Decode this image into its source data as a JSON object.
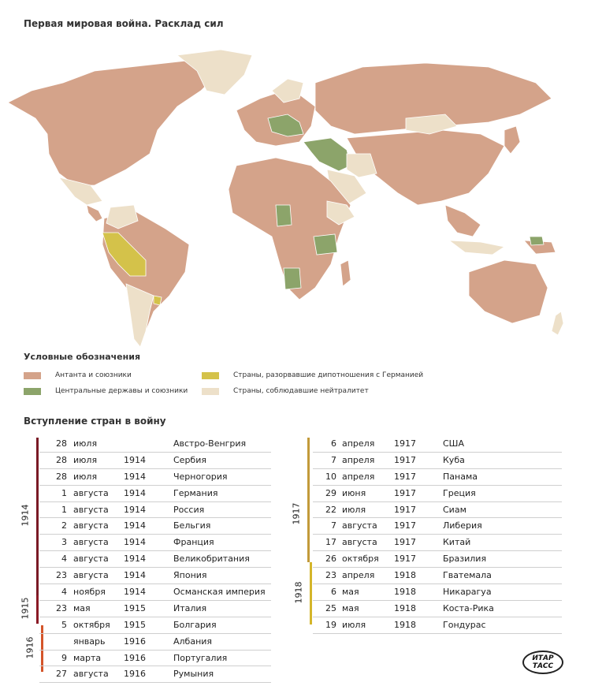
{
  "title": "Первая мировая война. Расклад сил",
  "colors": {
    "entente": "#d4a38a",
    "central": "#8ca46a",
    "broke_relations": "#d4c24a",
    "neutral": "#ede0c9",
    "bar_1914": "#7a1a26",
    "bar_1915": "#8a1a26",
    "bar_1916": "#d4552a",
    "bar_1917": "#c29a3a",
    "bar_1918": "#d4b52a"
  },
  "legend": {
    "title": "Условные обозначения",
    "entente": "Антанта и союзники",
    "central": "Центральные державы и союзники",
    "broke": "Страны, разорвавшие дипотношения с Германией",
    "neutral": "Страны, соблюдавшие нейтралитет"
  },
  "entry_title": "Вступление стран в войну",
  "left_table": [
    {
      "day": "28",
      "month": "июля",
      "year": "",
      "country": "Австро-Венгрия"
    },
    {
      "day": "28",
      "month": "июля",
      "year": "1914",
      "country": "Сербия"
    },
    {
      "day": "28",
      "month": "июля",
      "year": "1914",
      "country": "Черногория"
    },
    {
      "day": "1",
      "month": "августа",
      "year": "1914",
      "country": "Германия"
    },
    {
      "day": "1",
      "month": "августа",
      "year": "1914",
      "country": "Россия"
    },
    {
      "day": "2",
      "month": "августа",
      "year": "1914",
      "country": "Бельгия"
    },
    {
      "day": "3",
      "month": "августа",
      "year": "1914",
      "country": "Франция"
    },
    {
      "day": "4",
      "month": "августа",
      "year": "1914",
      "country": "Великобритания"
    },
    {
      "day": "23",
      "month": "августа",
      "year": "1914",
      "country": "Япония"
    },
    {
      "day": "4",
      "month": "ноября",
      "year": "1914",
      "country": "Османская империя"
    },
    {
      "day": "23",
      "month": "мая",
      "year": "1915",
      "country": "Италия"
    },
    {
      "day": "5",
      "month": "октября",
      "year": "1915",
      "country": "Болгария"
    },
    {
      "day": "",
      "month": "январь",
      "year": "1916",
      "country": "Албания"
    },
    {
      "day": "9",
      "month": "марта",
      "year": "1916",
      "country": "Португалия"
    },
    {
      "day": "27",
      "month": "августа",
      "year": "1916",
      "country": "Румыния"
    }
  ],
  "right_table": [
    {
      "day": "6",
      "month": "апреля",
      "year": "1917",
      "country": "США"
    },
    {
      "day": "7",
      "month": "апреля",
      "year": "1917",
      "country": "Куба"
    },
    {
      "day": "10",
      "month": "апреля",
      "year": "1917",
      "country": "Панама"
    },
    {
      "day": "29",
      "month": "июня",
      "year": "1917",
      "country": "Греция"
    },
    {
      "day": "22",
      "month": "июля",
      "year": "1917",
      "country": "Сиам"
    },
    {
      "day": "7",
      "month": "августа",
      "year": "1917",
      "country": "Либерия"
    },
    {
      "day": "17",
      "month": "августа",
      "year": "1917",
      "country": "Китай"
    },
    {
      "day": "26",
      "month": "октября",
      "year": "1917",
      "country": "Бразилия"
    },
    {
      "day": "23",
      "month": "апреля",
      "year": "1918",
      "country": "Гватемала"
    },
    {
      "day": "6",
      "month": "мая",
      "year": "1918",
      "country": "Никарагуа"
    },
    {
      "day": "25",
      "month": "мая",
      "year": "1918",
      "country": "Коста-Рика"
    },
    {
      "day": "19",
      "month": "июля",
      "year": "1918",
      "country": "Гондурас"
    }
  ],
  "year_groups": {
    "y1914": "1914",
    "y1915": "1915",
    "y1916": "1916",
    "y1917": "1917",
    "y1918": "1918"
  },
  "logo": {
    "line1": "ИТАР",
    "line2": "ТАСС"
  }
}
